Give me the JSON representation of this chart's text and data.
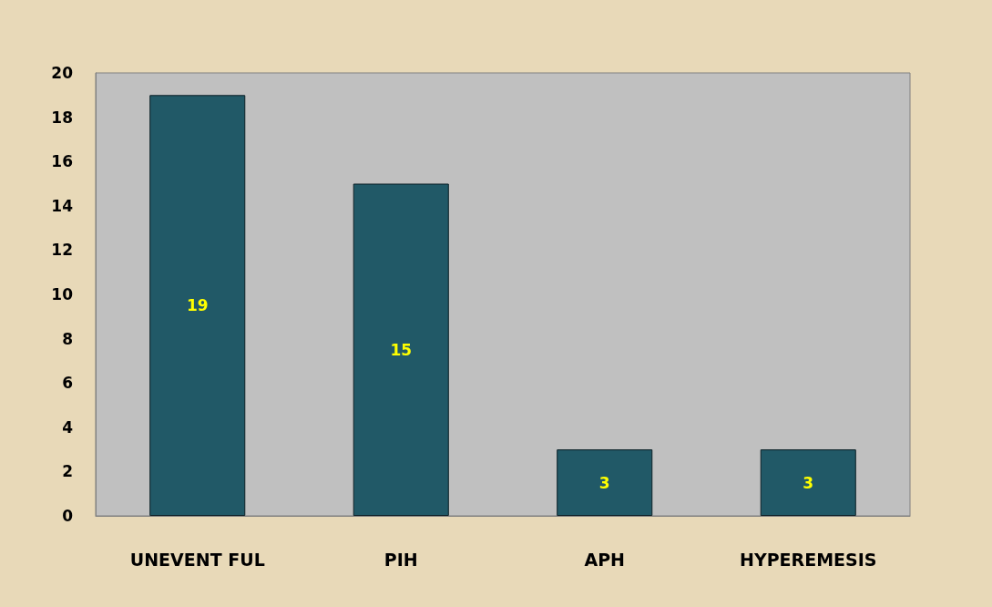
{
  "chart_data": {
    "type": "bar",
    "categories": [
      "UNEVENT FUL",
      "PIH",
      "APH",
      "HYPEREMESIS"
    ],
    "values": [
      19,
      15,
      3,
      3
    ],
    "color": "#215967",
    "ylim": [
      0,
      20
    ],
    "yticks": [
      0,
      2,
      4,
      6,
      8,
      10,
      12,
      14,
      16,
      18,
      20
    ],
    "grid": false,
    "data_labels": true
  }
}
